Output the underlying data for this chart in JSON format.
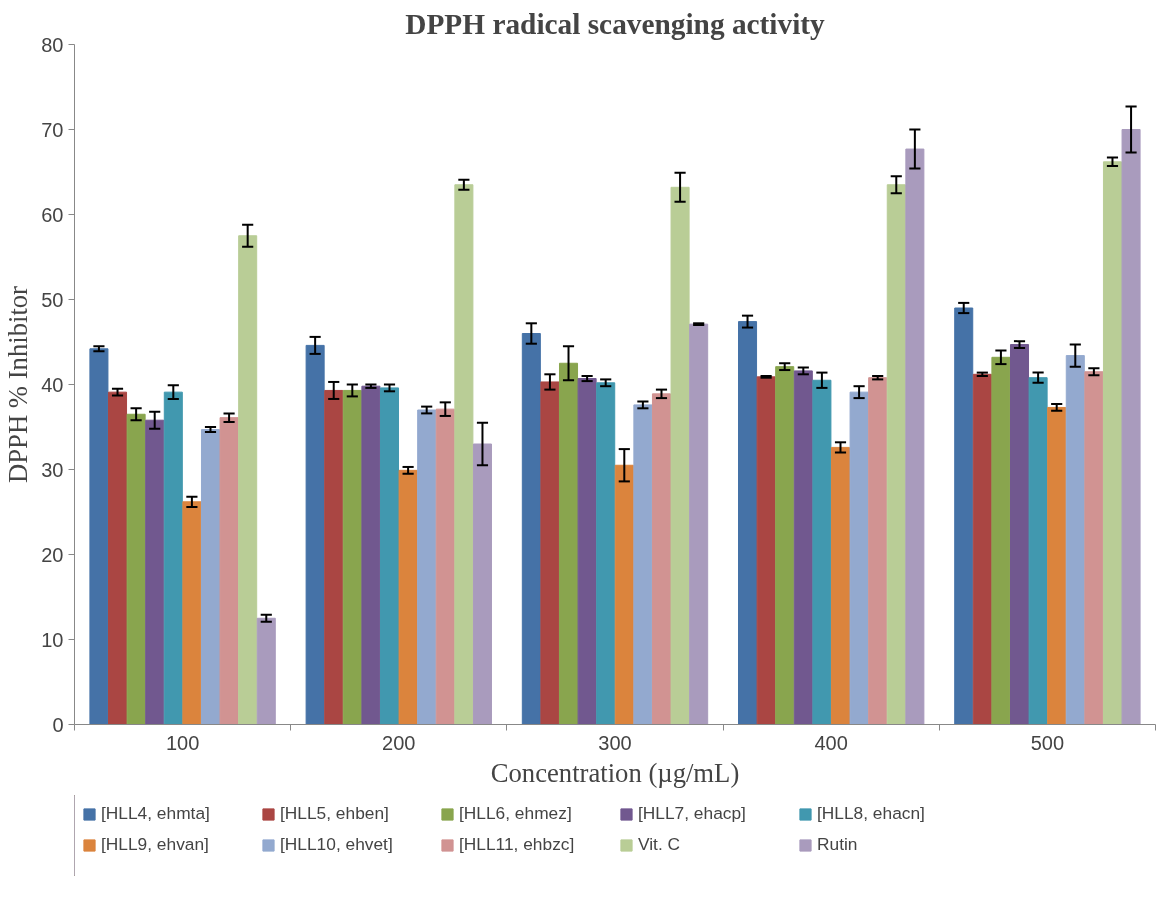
{
  "chart_data": {
    "type": "bar",
    "title": "DPPH radical scavenging activity",
    "xlabel": "Concentration (µg/mL)",
    "ylabel": "DPPH % Inhibitor",
    "categories": [
      "100",
      "200",
      "300",
      "400",
      "500"
    ],
    "ylim": [
      0,
      80
    ],
    "yticks": [
      0,
      10,
      20,
      30,
      40,
      50,
      60,
      70,
      80
    ],
    "grid": false,
    "legend": "bottom",
    "series": [
      {
        "name": "[HLL4, ehmta]",
        "color": "#4572a7",
        "values": [
          44.2,
          44.6,
          46.0,
          47.4,
          49.0
        ],
        "errors": [
          0.3,
          1.0,
          1.2,
          0.7,
          0.6
        ]
      },
      {
        "name": "[HLL5, ehben]",
        "color": "#aa4643",
        "values": [
          39.1,
          39.3,
          40.3,
          40.9,
          41.2
        ],
        "errors": [
          0.4,
          1.0,
          0.9,
          0.1,
          0.2
        ]
      },
      {
        "name": "[HLL6, ehmez]",
        "color": "#89a54e",
        "values": [
          36.5,
          39.3,
          42.5,
          42.1,
          43.2
        ],
        "errors": [
          0.7,
          0.7,
          2.0,
          0.4,
          0.8
        ]
      },
      {
        "name": "[HLL7, ehacp]",
        "color": "#71588f",
        "values": [
          35.8,
          39.8,
          40.7,
          41.6,
          44.7
        ],
        "errors": [
          1.0,
          0.2,
          0.3,
          0.4,
          0.4
        ]
      },
      {
        "name": "[HLL8, ehacn]",
        "color": "#4198af",
        "values": [
          39.1,
          39.6,
          40.2,
          40.5,
          40.8
        ],
        "errors": [
          0.8,
          0.4,
          0.4,
          0.9,
          0.6
        ]
      },
      {
        "name": "[HLL9, ehvan]",
        "color": "#db843d",
        "values": [
          26.2,
          29.9,
          30.5,
          32.6,
          37.3
        ],
        "errors": [
          0.6,
          0.4,
          1.9,
          0.6,
          0.4
        ]
      },
      {
        "name": "[HLL10, ehvet]",
        "color": "#93a9cf",
        "values": [
          34.7,
          37.0,
          37.6,
          39.1,
          43.4
        ],
        "errors": [
          0.3,
          0.4,
          0.4,
          0.7,
          1.3
        ]
      },
      {
        "name": "[HLL11, ehbzc]",
        "color": "#d19392",
        "values": [
          36.1,
          37.1,
          38.9,
          40.8,
          41.5
        ],
        "errors": [
          0.5,
          0.8,
          0.5,
          0.2,
          0.4
        ]
      },
      {
        "name": "Vit. C",
        "color": "#b9cd96",
        "values": [
          57.5,
          63.5,
          63.2,
          63.5,
          66.2
        ],
        "errors": [
          1.3,
          0.6,
          1.7,
          1.0,
          0.5
        ]
      },
      {
        "name": "Rutin",
        "color": "#a99bbd",
        "values": [
          12.5,
          33.0,
          47.1,
          67.7,
          70.0
        ],
        "errors": [
          0.4,
          2.5,
          0.1,
          2.3,
          2.7
        ]
      }
    ]
  }
}
